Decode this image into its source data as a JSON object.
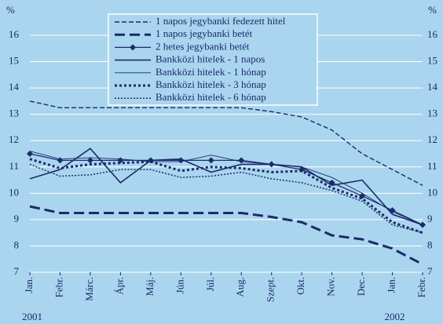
{
  "chart_data": {
    "type": "line",
    "y_unit": "%",
    "categories": [
      "Jan.",
      "Febr.",
      "Márc.",
      "Ápr.",
      "Máj.",
      "Jún.",
      "Júl.",
      "Aug.",
      "Szept.",
      "Okt.",
      "Nov.",
      "Dec.",
      "Jan.",
      "Febr."
    ],
    "year_labels": [
      "2001",
      "2002"
    ],
    "ylim": [
      7,
      16
    ],
    "yticks": [
      7,
      8,
      9,
      10,
      11,
      12,
      13,
      14,
      15,
      16
    ],
    "y2lim": [
      7,
      16
    ],
    "y2ticks": [
      7,
      8,
      9,
      10,
      11,
      12,
      13,
      14,
      15,
      16
    ],
    "grid": true,
    "legend_position": "top",
    "series": [
      {
        "name": "1 napos jegybanki fedezett hitel",
        "color": "#1b2a6b",
        "dash": "thin-dashed",
        "values": [
          13.5,
          13.25,
          13.25,
          13.25,
          13.25,
          13.25,
          13.25,
          13.25,
          13.1,
          12.9,
          12.4,
          11.5,
          10.9,
          10.3
        ]
      },
      {
        "name": "1 napos jegybanki betét",
        "color": "#1b2a6b",
        "dash": "thick-dashed",
        "values": [
          9.5,
          9.25,
          9.25,
          9.25,
          9.25,
          9.25,
          9.25,
          9.25,
          9.1,
          8.9,
          8.4,
          8.25,
          7.9,
          7.3
        ]
      },
      {
        "name": "2 hetes jegybanki betét",
        "color": "#1b2a6b",
        "dash": "solid-marker",
        "values": [
          11.5,
          11.25,
          11.25,
          11.25,
          11.25,
          11.25,
          11.25,
          11.25,
          11.1,
          10.9,
          10.4,
          9.9,
          9.35,
          8.8
        ]
      },
      {
        "name": "Bankközi hitelek - 1 napos",
        "color": "#1b2a6b",
        "dash": "solid",
        "values": [
          10.55,
          10.9,
          11.7,
          10.4,
          11.25,
          11.3,
          10.8,
          11.1,
          11.1,
          11.0,
          10.3,
          10.5,
          9.2,
          8.8
        ]
      },
      {
        "name": "Bankközi hitelek - 1 hónap",
        "color": "#1b2a6b",
        "dash": "thin-solid",
        "values": [
          11.6,
          11.3,
          11.35,
          11.3,
          11.2,
          11.2,
          11.45,
          11.2,
          11.1,
          11.0,
          10.6,
          10.0,
          9.3,
          8.8
        ]
      },
      {
        "name": "Bankközi hitelek - 3 hónap",
        "color": "#1b2a6b",
        "dash": "thick-dotted",
        "values": [
          11.3,
          10.95,
          11.1,
          11.15,
          11.2,
          10.85,
          11.0,
          10.95,
          10.8,
          10.85,
          10.2,
          9.8,
          8.9,
          8.5
        ]
      },
      {
        "name": "Bankközi hitelek - 6 hónap",
        "color": "#1b2a6b",
        "dash": "thin-dotted",
        "values": [
          11.1,
          10.65,
          10.7,
          10.9,
          10.9,
          10.6,
          10.65,
          10.8,
          10.55,
          10.4,
          10.1,
          9.7,
          8.8,
          8.5
        ]
      }
    ]
  }
}
